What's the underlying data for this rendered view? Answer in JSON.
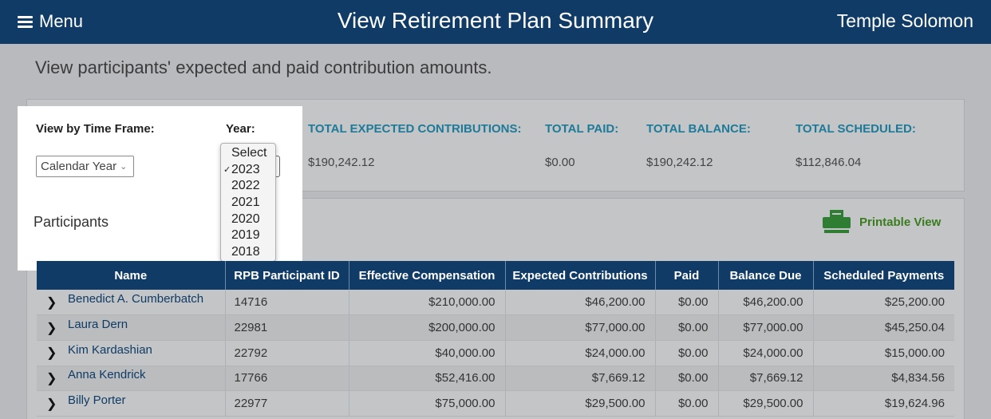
{
  "header": {
    "menu_label": "Menu",
    "title": "View Retirement Plan Summary",
    "user": "Temple Solomon"
  },
  "subtitle": "View participants' expected and paid contribution amounts.",
  "filters": {
    "timeframe_label": "View by Time Frame:",
    "timeframe_value": "Calendar Year",
    "year_label": "Year:",
    "year_options": [
      "Select",
      "2023",
      "2022",
      "2021",
      "2020",
      "2019",
      "2018"
    ],
    "year_selected": "2023"
  },
  "totals": [
    {
      "label": "TOTAL EXPECTED CONTRIBUTIONS:",
      "value": "$190,242.12"
    },
    {
      "label": "TOTAL PAID:",
      "value": "$0.00"
    },
    {
      "label": "TOTAL BALANCE:",
      "value": "$190,242.12"
    },
    {
      "label": "TOTAL SCHEDULED:",
      "value": "$112,846.04"
    }
  ],
  "participants": {
    "title": "Participants",
    "printable_label": "Printable View",
    "columns": [
      "Name",
      "RPB Participant ID",
      "Effective Compensation",
      "Expected Contributions",
      "Paid",
      "Balance Due",
      "Scheduled Payments"
    ],
    "rows": [
      {
        "name": "Benedict A. Cumberbatch",
        "id": "14716",
        "comp": "$210,000.00",
        "expected": "$46,200.00",
        "paid": "$0.00",
        "balance": "$46,200.00",
        "scheduled": "$25,200.00"
      },
      {
        "name": "Laura Dern",
        "id": "22981",
        "comp": "$200,000.00",
        "expected": "$77,000.00",
        "paid": "$0.00",
        "balance": "$77,000.00",
        "scheduled": "$45,250.04"
      },
      {
        "name": "Kim Kardashian",
        "id": "22792",
        "comp": "$40,000.00",
        "expected": "$24,000.00",
        "paid": "$0.00",
        "balance": "$24,000.00",
        "scheduled": "$15,000.00"
      },
      {
        "name": "Anna Kendrick",
        "id": "17766",
        "comp": "$52,416.00",
        "expected": "$7,669.12",
        "paid": "$0.00",
        "balance": "$7,669.12",
        "scheduled": "$4,834.56"
      },
      {
        "name": "Billy Porter",
        "id": "22977",
        "comp": "$75,000.00",
        "expected": "$29,500.00",
        "paid": "$0.00",
        "balance": "$29,500.00",
        "scheduled": "$19,624.96"
      }
    ]
  },
  "colors": {
    "header_bg": "#0f3b66",
    "totals_label": "#1f7a99",
    "printable": "#3a7d1e",
    "overlay": "#b8babd"
  }
}
